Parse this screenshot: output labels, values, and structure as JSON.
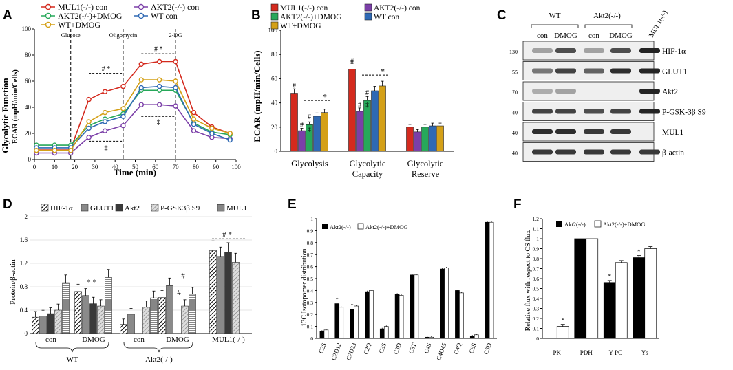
{
  "panel_labels": [
    "A",
    "B",
    "C",
    "D",
    "E",
    "F"
  ],
  "colors": {
    "mul1": "#d42a1e",
    "akt2": "#7b3fa8",
    "akt2dmog": "#27a85a",
    "wtcon": "#2f69b4",
    "wtdmog": "#d4a017",
    "hif": "#4a4a4a",
    "glut": "#8a8a8a",
    "akt": "#3a3a3a",
    "pgsk": "#c8c8c8",
    "mul": "#6e6e6e",
    "black": "#000000",
    "white": "#ffffff"
  },
  "chart_data": [
    {
      "panel": "A",
      "type": "line",
      "title": "Glycolytic Function",
      "ylabel": "ECAR (mpH/min/Cells)",
      "xlabel": "Time (min)",
      "x": [
        1,
        10,
        18,
        27,
        35,
        44,
        53,
        62,
        70,
        79,
        88,
        97
      ],
      "xlim": [
        0,
        100
      ],
      "ylim": [
        0,
        100
      ],
      "xticks": [
        "0",
        "10",
        "20",
        "30",
        "40",
        "50",
        "60",
        "70",
        "80",
        "90",
        "100"
      ],
      "yticks": [
        "0",
        "20",
        "40",
        "60",
        "80",
        "100"
      ],
      "injections": [
        {
          "label": "Glucose",
          "x": 18
        },
        {
          "label": "Oligomycin",
          "x": 44
        },
        {
          "label": "2-DG",
          "x": 70
        }
      ],
      "series": [
        {
          "name": "MUL1(-/-) con",
          "color": "mul1",
          "values": [
            8,
            8,
            8,
            46,
            52,
            56,
            73,
            75,
            75,
            36,
            25,
            20
          ]
        },
        {
          "name": "AKT2(-/-) con",
          "color": "akt2",
          "values": [
            5,
            5,
            5,
            17,
            22,
            26,
            42,
            42,
            41,
            22,
            17,
            16
          ]
        },
        {
          "name": "AKT2(-/-)+DMOG",
          "color": "akt2dmog",
          "values": [
            11,
            11,
            11,
            26,
            31,
            35,
            53,
            53,
            53,
            28,
            21,
            19
          ]
        },
        {
          "name": "WT con",
          "color": "wtcon",
          "values": [
            9,
            9,
            9,
            24,
            29,
            33,
            55,
            56,
            55,
            27,
            20,
            15
          ]
        },
        {
          "name": "WT+DMOG",
          "color": "wtdmog",
          "values": [
            7,
            7,
            7,
            29,
            36,
            39,
            61,
            61,
            60,
            31,
            24,
            20
          ]
        }
      ],
      "annotations": [
        "# *",
        "# *",
        "‡",
        "‡"
      ]
    },
    {
      "panel": "B",
      "type": "bar",
      "ylabel": "ECAR (mpH/min/Cells)",
      "ylim": [
        0,
        100
      ],
      "yticks": [
        "0",
        "20",
        "40",
        "60",
        "80",
        "100"
      ],
      "categories": [
        "Glycolysis",
        "Glycolytic Capacity",
        "Glycolytic Reserve"
      ],
      "series": [
        {
          "name": "MUL1(-/-) con",
          "color": "mul1",
          "values": [
            48,
            68,
            20
          ]
        },
        {
          "name": "AKT2(-/-) con",
          "color": "akt2",
          "values": [
            17,
            33,
            16
          ]
        },
        {
          "name": "AKT2(-/-)+DMOG",
          "color": "akt2dmog",
          "values": [
            22,
            42,
            20
          ]
        },
        {
          "name": "WT con",
          "color": "wtcon",
          "values": [
            29,
            50,
            21
          ]
        },
        {
          "name": "WT+DMOG",
          "color": "wtdmog",
          "values": [
            32,
            54,
            21
          ]
        }
      ],
      "annotations": [
        "#",
        "*",
        "‡"
      ]
    },
    {
      "panel": "D",
      "type": "bar",
      "ylabel": "Protein/β-actin",
      "ylim": [
        0,
        2
      ],
      "yticks": [
        "0",
        "0.4",
        "0.8",
        "1.2",
        "1.6",
        "2"
      ],
      "categories": [
        "con",
        "DMOG",
        "con",
        "DMOG",
        "MUL1(-/-)"
      ],
      "groups": [
        "WT",
        "Akt2(-/-)"
      ],
      "series": [
        {
          "name": "HIF-1α",
          "color": "hif",
          "pattern": "diag",
          "values": [
            0.28,
            0.72,
            0.16,
            0.62,
            1.42
          ]
        },
        {
          "name": "GLUT1",
          "color": "glut",
          "values": [
            0.3,
            0.65,
            0.33,
            0.82,
            1.32
          ]
        },
        {
          "name": "Akt2",
          "color": "akt",
          "values": [
            0.34,
            0.51,
            0.0,
            0.0,
            1.39
          ]
        },
        {
          "name": "P-GSK3β S9",
          "color": "pgsk",
          "pattern": "diag",
          "values": [
            0.4,
            0.47,
            0.45,
            0.47,
            1.22
          ]
        },
        {
          "name": "MUL1",
          "color": "mul",
          "pattern": "hlines",
          "values": [
            0.87,
            0.96,
            0.61,
            0.67,
            0.0
          ]
        }
      ],
      "annotations": [
        "* *",
        "#",
        "# *"
      ]
    },
    {
      "panel": "E",
      "type": "bar",
      "ylabel": "13C Isotopomer distribution",
      "ylim": [
        0,
        1
      ],
      "yticks": [
        "0",
        "0.1",
        "0.2",
        "0.3",
        "0.4",
        "0.5",
        "0.6",
        "0.7",
        "0.8",
        "0.9",
        "1"
      ],
      "categories": [
        "C2S",
        "C2D12",
        "C2D23",
        "C2Q",
        "C3S",
        "C3D",
        "C3T",
        "C4S",
        "C4D45",
        "C4Q",
        "C5S",
        "C5D"
      ],
      "series": [
        {
          "name": "Akt2(-/-)",
          "color": "black",
          "values": [
            0.06,
            0.29,
            0.24,
            0.39,
            0.08,
            0.37,
            0.53,
            0.01,
            0.58,
            0.4,
            0.02,
            0.97
          ]
        },
        {
          "name": "Akt2(-/-)+DMOG",
          "color": "white",
          "values": [
            0.07,
            0.26,
            0.27,
            0.4,
            0.1,
            0.36,
            0.53,
            0.01,
            0.59,
            0.38,
            0.03,
            0.97
          ]
        }
      ],
      "annotations": [
        "*",
        "*"
      ]
    },
    {
      "panel": "F",
      "type": "bar",
      "ylabel": "Relative flux with respect to CS flux",
      "ylim": [
        0,
        1.2
      ],
      "yticks": [
        "0",
        "0.1",
        "0.2",
        "0.3",
        "0.4",
        "0.5",
        "0.6",
        "0.7",
        "0.8",
        "0.9",
        "1",
        "1.1",
        "1.2"
      ],
      "categories": [
        "PK",
        "PDH",
        "Y PC",
        "Ys"
      ],
      "series": [
        {
          "name": "Akt2(-/-)",
          "color": "black",
          "values": [
            0,
            1.0,
            0.56,
            0.81
          ]
        },
        {
          "name": "Akt2(-/-)+DMOG",
          "color": "white",
          "values": [
            0.12,
            1.0,
            0.76,
            0.9
          ]
        }
      ],
      "annotations": [
        "*",
        "*",
        "*"
      ]
    }
  ],
  "blot": {
    "groups": [
      "WT",
      "Akt2(-/-)",
      "MUL1(-/-)"
    ],
    "lanes": [
      "con",
      "DMOG",
      "con",
      "DMOG"
    ],
    "rows": [
      {
        "label": "HIF-1α",
        "mw": "130",
        "intensity": [
          0.35,
          0.75,
          0.35,
          0.75,
          0.95
        ]
      },
      {
        "label": "GLUT1",
        "mw": "55",
        "intensity": [
          0.55,
          0.8,
          0.65,
          0.9,
          0.95
        ]
      },
      {
        "label": "Akt2",
        "mw": "70",
        "intensity": [
          0.3,
          0.35,
          0.0,
          0.0,
          0.95
        ]
      },
      {
        "label": "P-GSK-3β S9",
        "mw": "40",
        "intensity": [
          0.8,
          0.8,
          0.75,
          0.8,
          0.95
        ]
      },
      {
        "label": "MUL1",
        "mw": "40",
        "intensity": [
          0.9,
          0.9,
          0.85,
          0.85,
          0.0
        ]
      },
      {
        "label": "β-actin",
        "mw": "40",
        "intensity": [
          0.85,
          0.85,
          0.85,
          0.85,
          0.85
        ]
      }
    ]
  }
}
